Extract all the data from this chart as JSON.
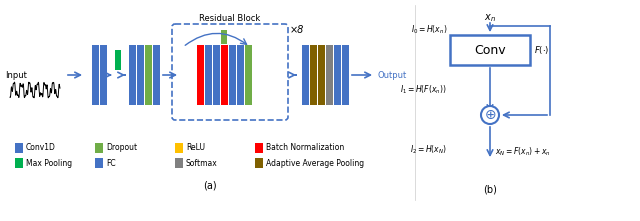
{
  "fig_width": 6.4,
  "fig_height": 2.21,
  "dpi": 100,
  "blue": "#4472C4",
  "green_light": "#70AD47",
  "green_dark": "#375623",
  "yellow": "#FFC000",
  "red": "#FF0000",
  "gray": "#808080",
  "dark_gold": "#7F6000",
  "arrow_color": "#4472C4",
  "box_color": "#4472C4",
  "text_color": "#000000",
  "legend_items": [
    {
      "label": "Conv1D",
      "color": "#4472C4"
    },
    {
      "label": "Dropout",
      "color": "#70AD47"
    },
    {
      "label": "ReLU",
      "color": "#FFC000"
    },
    {
      "label": "Batch Normalization",
      "color": "#FF0000"
    },
    {
      "label": "Max Pooling",
      "color": "#00B050"
    },
    {
      "label": "FC",
      "color": "#4472C4"
    },
    {
      "label": "Softmax",
      "color": "#808080"
    },
    {
      "label": "Adaptive Average Pooling",
      "color": "#7F6000"
    }
  ],
  "subfig_a_label": "(a)",
  "subfig_b_label": "(b)",
  "residual_block_label": "Residual Block",
  "x8_label": "×8",
  "input_label": "Input",
  "output_label": "Output"
}
